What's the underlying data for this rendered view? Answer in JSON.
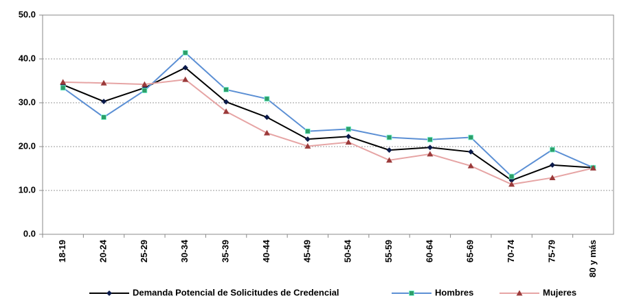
{
  "chart_data": {
    "type": "line",
    "categories": [
      "18-19",
      "20-24",
      "25-29",
      "30-34",
      "35-39",
      "40-44",
      "45-49",
      "50-54",
      "55-59",
      "60-64",
      "65-69",
      "70-74",
      "75-79",
      "80 y más"
    ],
    "series": [
      {
        "name": "Demanda Potencial de Solicitudes de Credencial",
        "color": "#000000",
        "marker_color": "#0b1a4a",
        "marker": "diamond",
        "values": [
          34.1,
          30.3,
          33.4,
          38.0,
          30.2,
          26.7,
          21.7,
          22.3,
          19.2,
          19.8,
          18.8,
          12.3,
          15.8,
          15.2
        ]
      },
      {
        "name": "Hombres",
        "color": "#5b8fd4",
        "marker_color": "#2e9e6a",
        "marker": "square",
        "values": [
          33.4,
          26.7,
          32.8,
          41.4,
          33.0,
          30.9,
          23.5,
          24.0,
          22.1,
          21.6,
          22.1,
          13.2,
          19.3,
          15.2
        ]
      },
      {
        "name": "Mujeres",
        "color": "#e6a4a4",
        "marker_color": "#9b3a3a",
        "marker": "triangle",
        "values": [
          34.7,
          34.5,
          34.2,
          35.3,
          28.0,
          23.1,
          20.1,
          21.0,
          16.9,
          18.3,
          15.6,
          11.4,
          12.9,
          15.1
        ]
      }
    ],
    "ylim": [
      0,
      50
    ],
    "yticks": [
      {
        "value": 0,
        "label": "0.0"
      },
      {
        "value": 10,
        "label": "10.0"
      },
      {
        "value": 20,
        "label": "20.0"
      },
      {
        "value": 30,
        "label": "30.0"
      },
      {
        "value": 40,
        "label": "40.0"
      },
      {
        "value": 50,
        "label": "50.0"
      }
    ],
    "grid": true,
    "legend": "bottom"
  }
}
